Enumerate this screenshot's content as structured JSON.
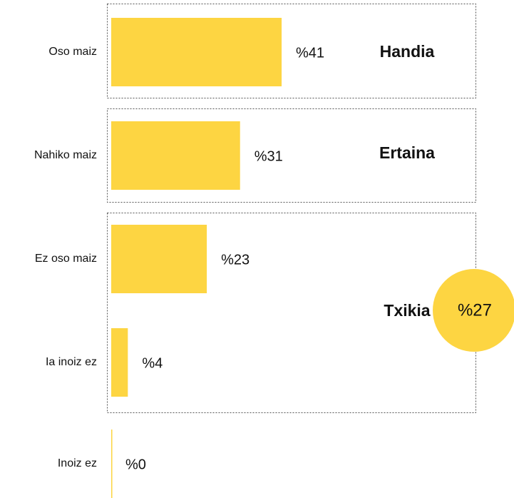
{
  "chart_data": {
    "type": "bar",
    "orientation": "horizontal",
    "categories": [
      "Oso maiz",
      "Nahiko maiz",
      "Ez oso maiz",
      "Ia inoiz ez",
      "Inoiz ez"
    ],
    "values": [
      41,
      31,
      23,
      4,
      0
    ],
    "value_labels": [
      "%41",
      "%31",
      "%23",
      "%4",
      "%0"
    ],
    "color": "#fdd542",
    "groups": [
      "Handia",
      "Ertaina",
      "Txikia"
    ],
    "highlight": {
      "value": 27,
      "label": "%27"
    }
  }
}
